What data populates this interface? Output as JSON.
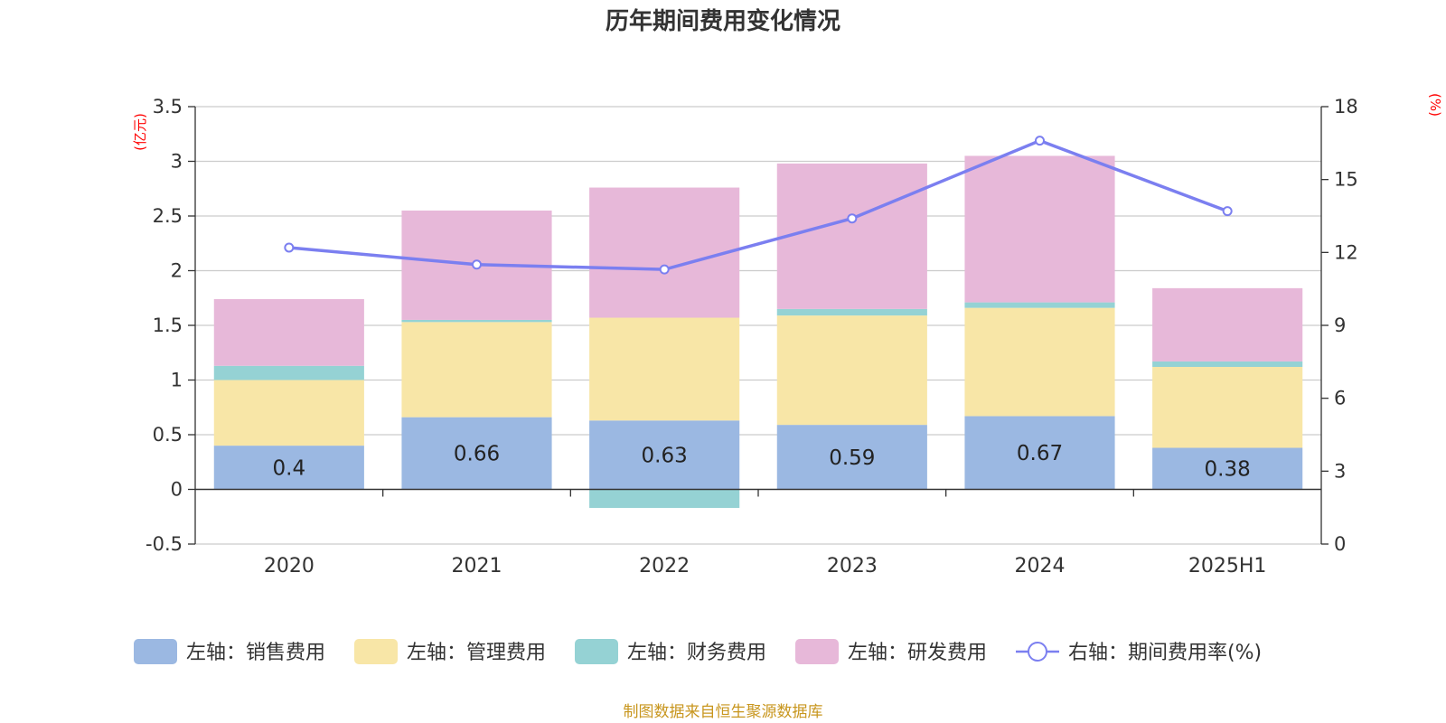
{
  "chart_data": {
    "type": "bar",
    "stacked": true,
    "title": "历年期间费用变化情况",
    "categories": [
      "2020",
      "2021",
      "2022",
      "2023",
      "2024",
      "2025H1"
    ],
    "left_axis": {
      "unit_label": "(亿元)",
      "ylim": [
        -0.5,
        3.5
      ],
      "ticks": [
        -0.5,
        0,
        0.5,
        1,
        1.5,
        2,
        2.5,
        3,
        3.5
      ],
      "tick_labels": [
        "-0.5",
        "0",
        "0.5",
        "1",
        "1.5",
        "2",
        "2.5",
        "3",
        "3.5"
      ]
    },
    "right_axis": {
      "unit_label": "(%)",
      "ylim": [
        0,
        18
      ],
      "ticks": [
        0,
        3,
        6,
        9,
        12,
        15,
        18
      ],
      "tick_labels": [
        "0",
        "3",
        "6",
        "9",
        "12",
        "15",
        "18"
      ]
    },
    "series": [
      {
        "name": "左轴：销售费用",
        "axis": "left",
        "kind": "bar",
        "color": "#9bb8e2",
        "values": [
          0.4,
          0.66,
          0.63,
          0.59,
          0.67,
          0.38
        ],
        "data_labels": [
          "0.4",
          "0.66",
          "0.63",
          "0.59",
          "0.67",
          "0.38"
        ]
      },
      {
        "name": "左轴：管理费用",
        "axis": "left",
        "kind": "bar",
        "color": "#f8e6a7",
        "values": [
          0.6,
          0.87,
          0.94,
          1.0,
          0.99,
          0.74
        ]
      },
      {
        "name": "左轴：财务费用",
        "axis": "left",
        "kind": "bar",
        "color": "#95d2d4",
        "values": [
          0.13,
          0.02,
          -0.17,
          0.06,
          0.05,
          0.05
        ]
      },
      {
        "name": "左轴：研发费用",
        "axis": "left",
        "kind": "bar",
        "color": "#e7b8d9",
        "values": [
          0.61,
          1.0,
          1.19,
          1.33,
          1.34,
          0.67
        ]
      },
      {
        "name": "右轴：期间费用率(%)",
        "axis": "right",
        "kind": "line",
        "color": "#7b7ff0",
        "values": [
          12.2,
          11.5,
          11.3,
          13.4,
          16.6,
          13.7
        ]
      }
    ],
    "grid": true,
    "legend_position": "bottom"
  },
  "colors": {
    "title": "#333333",
    "axis_unit": "#ff0000",
    "source": "#c8961e"
  },
  "source_note": "制图数据来自恒生聚源数据库"
}
